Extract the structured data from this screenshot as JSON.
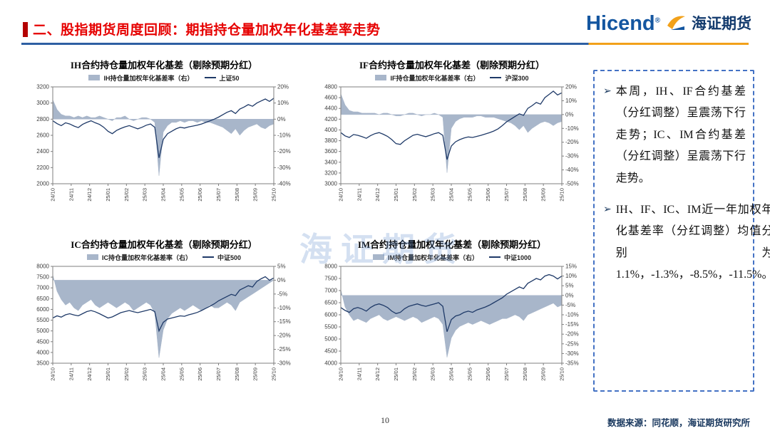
{
  "slide": {
    "header": {
      "title": "二、股指期货周度回顾：期指持仓量加权年化基差率走势"
    },
    "logo": {
      "brand_en": "Hicend",
      "registered": "®",
      "brand_cn": "海证期货"
    },
    "watermark": "海证期货",
    "footer": {
      "page_number": "10",
      "source": "数据来源：同花顺，海证期货研究所"
    }
  },
  "commentary": {
    "marker": "➢",
    "bullets": [
      "本周，IH、IF合约基差（分红调整）呈震荡下行走势；IC、IM合约基差（分红调整）呈震荡下行走势。",
      "IH、IF、IC、IM近一年加权年化基差率（分红调整）均值分别为1.1%，-1.3%，-8.5%，-11.5%。"
    ]
  },
  "colors": {
    "area": "#a8b6ca",
    "line": "#1f3a68",
    "header_red": "#e60000",
    "rule_blue": "#2e5fa3",
    "rule_orange": "#f2a11a",
    "brand_blue": "#1456a0",
    "brand_dark": "#123a6d",
    "source_navy": "#17365d"
  },
  "chart_data": [
    {
      "type": "line",
      "title": "IH合约持仓量加权年化基差（剔除预期分红）",
      "legend": [
        "IH持仓量加权年化基差率（右）",
        "上证50"
      ],
      "x_labels": [
        "24/10",
        "24/11",
        "24/12",
        "25/01",
        "25/02",
        "25/03",
        "25/04",
        "25/05",
        "25/06",
        "25/07",
        "25/08",
        "25/09",
        "25/10"
      ],
      "left_axis": {
        "min": 2000,
        "max": 3200,
        "step": 200
      },
      "right_axis": {
        "min": -40,
        "max": 20,
        "step": 10,
        "suffix": "%"
      },
      "series": [
        {
          "name": "IH持仓量加权年化基差率（右）",
          "axis": "right",
          "style": "area",
          "values": [
            12,
            6,
            3,
            2,
            2,
            1,
            2,
            1,
            2,
            1,
            1,
            2,
            1,
            0,
            -1,
            1,
            1,
            2,
            0,
            -1,
            0,
            1,
            1,
            0,
            -2,
            -35,
            -8,
            -4,
            -2,
            -2,
            -1,
            -2,
            -1,
            -1,
            -2,
            -1,
            -2,
            -2,
            -3,
            -4,
            -5,
            -7,
            -9,
            -6,
            -10,
            -7,
            -5,
            -4,
            -3,
            -5,
            -6,
            -4,
            -3
          ]
        },
        {
          "name": "上证50",
          "axis": "left",
          "style": "line",
          "values": [
            2780,
            2745,
            2720,
            2755,
            2740,
            2715,
            2695,
            2735,
            2760,
            2780,
            2755,
            2735,
            2700,
            2650,
            2620,
            2660,
            2685,
            2705,
            2720,
            2700,
            2680,
            2700,
            2725,
            2740,
            2700,
            2320,
            2550,
            2620,
            2650,
            2680,
            2700,
            2690,
            2705,
            2715,
            2725,
            2740,
            2760,
            2780,
            2800,
            2825,
            2855,
            2885,
            2905,
            2870,
            2925,
            2950,
            2980,
            2960,
            3000,
            3025,
            3050,
            3020,
            3060
          ]
        }
      ]
    },
    {
      "type": "line",
      "title": "IF合约持仓量加权年化基差（剔除预期分红）",
      "legend": [
        "IF持仓量加权年化基差率（右）",
        "沪深300"
      ],
      "x_labels": [
        "24/10",
        "24/11",
        "24/12",
        "25/01",
        "25/02",
        "25/03",
        "25/04",
        "25/05",
        "25/06",
        "25/07",
        "25/08",
        "25/09",
        "25/10"
      ],
      "left_axis": {
        "min": 3000,
        "max": 4800,
        "step": 200
      },
      "right_axis": {
        "min": -50,
        "max": 20,
        "step": 10,
        "suffix": "%"
      },
      "series": [
        {
          "name": "IF持仓量加权年化基差率（右）",
          "axis": "right",
          "style": "area",
          "values": [
            15,
            7,
            3,
            2,
            2,
            1,
            1,
            1,
            1,
            0,
            1,
            1,
            0,
            -1,
            -1,
            0,
            1,
            1,
            0,
            -1,
            0,
            0,
            1,
            0,
            -2,
            -42,
            -10,
            -5,
            -3,
            -2,
            -2,
            -2,
            -1,
            -1,
            -2,
            -2,
            -2,
            -3,
            -4,
            -5,
            -6,
            -8,
            -11,
            -8,
            -13,
            -10,
            -8,
            -6,
            -5,
            -6,
            -8,
            -6,
            -5
          ]
        },
        {
          "name": "沪深300",
          "axis": "left",
          "style": "line",
          "values": [
            3950,
            3890,
            3860,
            3915,
            3900,
            3875,
            3845,
            3895,
            3930,
            3950,
            3920,
            3880,
            3820,
            3745,
            3730,
            3800,
            3850,
            3900,
            3920,
            3895,
            3875,
            3900,
            3930,
            3950,
            3900,
            3450,
            3700,
            3780,
            3820,
            3850,
            3870,
            3860,
            3880,
            3900,
            3925,
            3950,
            3980,
            4020,
            4080,
            4150,
            4200,
            4250,
            4300,
            4270,
            4400,
            4450,
            4510,
            4480,
            4600,
            4660,
            4720,
            4650,
            4690
          ]
        }
      ]
    },
    {
      "type": "line",
      "title": "IC合约持仓量加权年化基差（剔除预期分红）",
      "legend": [
        "IC持仓量加权年化基差率（右）",
        "中证500"
      ],
      "x_labels": [
        "24/10",
        "24/11",
        "24/12",
        "25/01",
        "25/02",
        "25/03",
        "25/04",
        "25/05",
        "25/06",
        "25/07",
        "25/08",
        "25/09",
        "25/10"
      ],
      "left_axis": {
        "min": 3500,
        "max": 8000,
        "step": 500
      },
      "right_axis": {
        "min": -30,
        "max": 5,
        "step": 5,
        "suffix": "%"
      },
      "series": [
        {
          "name": "IC持仓量加权年化基差率（右）",
          "axis": "right",
          "style": "area",
          "values": [
            2,
            -4,
            -7,
            -9,
            -8,
            -10,
            -11,
            -9,
            -8,
            -7,
            -9,
            -10,
            -9,
            -8,
            -9,
            -10,
            -9,
            -8,
            -9,
            -11,
            -10,
            -9,
            -8,
            -9,
            -12,
            -28,
            -18,
            -14,
            -12,
            -11,
            -10,
            -11,
            -10,
            -9,
            -10,
            -11,
            -10,
            -9,
            -10,
            -10,
            -9,
            -8,
            -9,
            -11,
            -8,
            -7,
            -6,
            -5,
            -4,
            -3,
            -2,
            -1,
            0
          ]
        },
        {
          "name": "中证500",
          "axis": "left",
          "style": "line",
          "values": [
            5600,
            5700,
            5640,
            5750,
            5800,
            5745,
            5700,
            5800,
            5900,
            5950,
            5890,
            5800,
            5700,
            5600,
            5650,
            5750,
            5850,
            5900,
            5950,
            5890,
            5850,
            5900,
            5950,
            6000,
            5900,
            5000,
            5400,
            5550,
            5600,
            5650,
            5700,
            5680,
            5750,
            5800,
            5860,
            5950,
            6050,
            6150,
            6260,
            6400,
            6500,
            6600,
            6700,
            6640,
            6900,
            7000,
            7100,
            7040,
            7300,
            7420,
            7520,
            7350,
            7460
          ]
        }
      ]
    },
    {
      "type": "line",
      "title": "IM合约持仓量加权年化基差（剔除预期分红）",
      "legend": [
        "IM持仓量加权年化基差率（右）",
        "中证1000"
      ],
      "x_labels": [
        "24/10",
        "24/11",
        "24/12",
        "25/01",
        "25/02",
        "25/03",
        "25/04",
        "25/05",
        "25/06",
        "25/07",
        "25/08",
        "25/09",
        "25/10"
      ],
      "left_axis": {
        "min": 4000,
        "max": 8000,
        "step": 500
      },
      "right_axis": {
        "min": -35,
        "max": 15,
        "step": 5,
        "suffix": "%"
      },
      "series": [
        {
          "name": "IM持仓量加权年化基差率（右）",
          "axis": "right",
          "style": "area",
          "values": [
            3,
            -6,
            -10,
            -13,
            -12,
            -13,
            -14,
            -12,
            -11,
            -10,
            -12,
            -13,
            -12,
            -11,
            -12,
            -13,
            -12,
            -11,
            -12,
            -14,
            -13,
            -12,
            -11,
            -12,
            -15,
            -32,
            -22,
            -18,
            -16,
            -15,
            -14,
            -15,
            -14,
            -13,
            -14,
            -15,
            -14,
            -13,
            -12,
            -12,
            -11,
            -10,
            -11,
            -13,
            -10,
            -9,
            -8,
            -7,
            -6,
            -5,
            -4,
            -6,
            -5
          ]
        },
        {
          "name": "中证1000",
          "axis": "left",
          "style": "line",
          "values": [
            6300,
            6180,
            6100,
            6250,
            6300,
            6240,
            6150,
            6300,
            6400,
            6450,
            6390,
            6300,
            6150,
            6050,
            6100,
            6250,
            6350,
            6400,
            6450,
            6390,
            6350,
            6400,
            6450,
            6500,
            6350,
            5300,
            5800,
            5950,
            6000,
            6100,
            6150,
            6100,
            6200,
            6260,
            6320,
            6400,
            6500,
            6600,
            6700,
            6850,
            6950,
            7050,
            7150,
            7080,
            7300,
            7400,
            7500,
            7440,
            7600,
            7660,
            7600,
            7480,
            7600
          ]
        }
      ]
    }
  ]
}
